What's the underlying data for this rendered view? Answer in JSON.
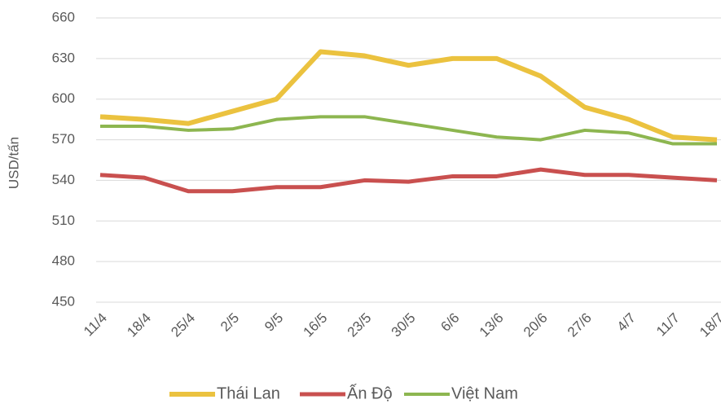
{
  "chart_data": {
    "type": "line",
    "y_label": "USD/tấn",
    "categories": [
      "11/4",
      "18/4",
      "25/4",
      "2/5",
      "9/5",
      "16/5",
      "23/5",
      "30/5",
      "6/6",
      "13/6",
      "20/6",
      "27/6",
      "4/7",
      "11/7",
      "18/7"
    ],
    "series": [
      {
        "name": "Thái Lan",
        "color": "#EBC23F",
        "values": [
          587,
          585,
          582,
          591,
          600,
          635,
          632,
          625,
          630,
          630,
          617,
          594,
          585,
          572,
          570
        ]
      },
      {
        "name": "Ấn Độ",
        "color": "#C9504F",
        "values": [
          544,
          542,
          532,
          532,
          535,
          535,
          540,
          539,
          543,
          543,
          548,
          544,
          544,
          542,
          540
        ]
      },
      {
        "name": "Việt Nam",
        "color": "#8DB650",
        "values": [
          580,
          580,
          577,
          578,
          585,
          587,
          587,
          582,
          577,
          572,
          570,
          577,
          575,
          567,
          567
        ]
      }
    ],
    "ylim": [
      450,
      660
    ],
    "yticks": [
      450,
      480,
      510,
      540,
      570,
      600,
      630,
      660
    ],
    "grid": true,
    "legend": "bottom"
  }
}
